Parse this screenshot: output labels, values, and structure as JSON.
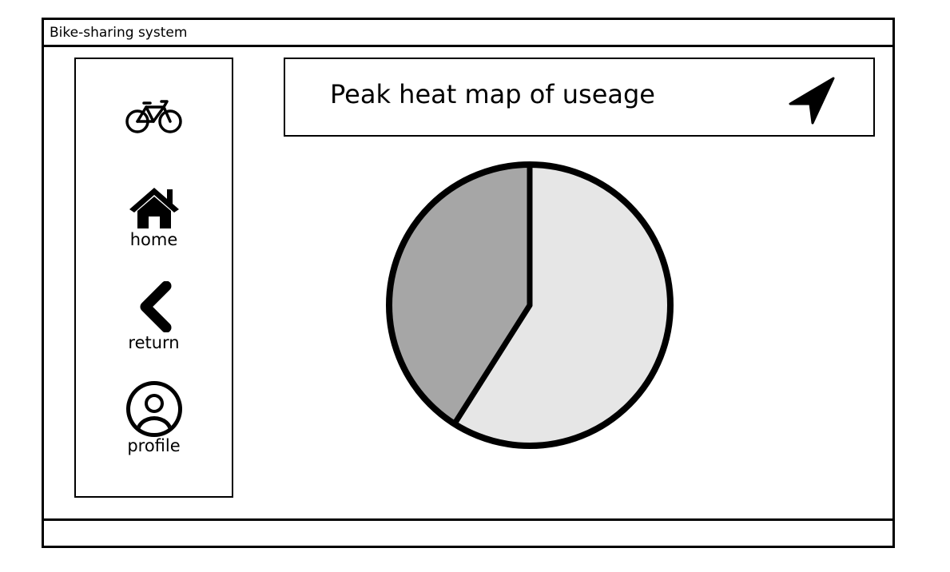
{
  "window": {
    "title": "Bike-sharing system"
  },
  "sidebar": {
    "logo_icon": "bicycle-icon",
    "items": [
      {
        "label": "home",
        "icon": "home-icon"
      },
      {
        "label": "return",
        "icon": "chevron-left-icon"
      },
      {
        "label": "profile",
        "icon": "user-avatar-icon"
      }
    ]
  },
  "header": {
    "title": "Peak heat map of useage",
    "action_icon": "navigation-arrow-icon"
  },
  "colors": {
    "slice_light": "#e6e6e6",
    "slice_dark": "#a6a6a6",
    "outline": "#000000"
  },
  "chart_data": {
    "type": "pie",
    "title": "",
    "values": [
      59,
      41
    ]
  }
}
